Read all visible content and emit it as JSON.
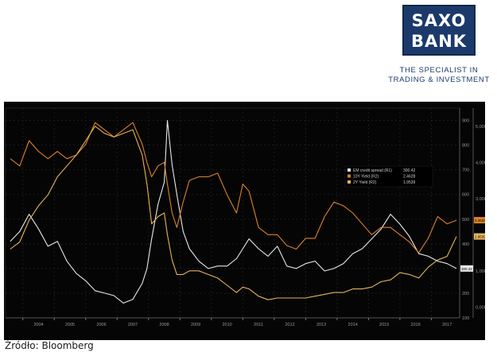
{
  "branding": {
    "logo_line1": "SAXO",
    "logo_line2": "BANK",
    "tagline_line1": "THE SPECIALIST IN",
    "tagline_line2": "TRADING & INVESTMENT",
    "brand_color": "#1b3a6b"
  },
  "source": "Źródło: Bloomberg",
  "chart_data": {
    "type": "line",
    "background": "#050505",
    "grid": true,
    "legend_position": "center-right",
    "x": [
      2003.6,
      2003.9,
      2004.2,
      2004.5,
      2004.8,
      2005.1,
      2005.4,
      2005.7,
      2006.0,
      2006.3,
      2006.6,
      2006.9,
      2007.2,
      2007.5,
      2007.8,
      2007.95,
      2008.1,
      2008.3,
      2008.5,
      2008.6,
      2008.75,
      2008.9,
      2009.1,
      2009.3,
      2009.6,
      2009.9,
      2010.2,
      2010.5,
      2010.8,
      2011.0,
      2011.2,
      2011.5,
      2011.8,
      2012.1,
      2012.4,
      2012.7,
      2013.0,
      2013.3,
      2013.6,
      2013.9,
      2014.2,
      2014.5,
      2014.8,
      2015.1,
      2015.4,
      2015.7,
      2016.0,
      2016.3,
      2016.6,
      2016.9,
      2017.2,
      2017.5,
      2017.8
    ],
    "x_ticks": [
      "2004",
      "2005",
      "2006",
      "2007",
      "2008",
      "2009",
      "2010",
      "2011",
      "2012",
      "2013",
      "2014",
      "2015",
      "2016",
      "2017"
    ],
    "y_left": {
      "label": "",
      "ylim": [
        100,
        950
      ],
      "ticks": [
        "900",
        "800",
        "700",
        "600",
        "500",
        "400",
        "300",
        "200",
        "100"
      ]
    },
    "y_right": {
      "label": "",
      "ylim": [
        -0.3,
        5.5
      ],
      "ticks": [
        "5,0000",
        "4,0000",
        "3,0000",
        "2,0000",
        "1,0000",
        "0,0000"
      ]
    },
    "series": [
      {
        "name": "EM credit spread (R1)",
        "legend_value": "300.42",
        "axis": "left",
        "color": "#e8e8e8",
        "values": [
          410,
          450,
          520,
          460,
          390,
          410,
          330,
          280,
          250,
          210,
          200,
          190,
          160,
          175,
          240,
          300,
          420,
          560,
          650,
          900,
          720,
          600,
          450,
          380,
          330,
          300,
          310,
          310,
          340,
          380,
          420,
          380,
          350,
          390,
          310,
          300,
          320,
          330,
          290,
          300,
          320,
          360,
          380,
          420,
          460,
          520,
          480,
          430,
          360,
          350,
          330,
          320,
          300
        ]
      },
      {
        "name": "10Y Yield (R2)",
        "legend_value": "2.4628",
        "axis": "right",
        "color": "#d9832a",
        "values": [
          4.1,
          3.9,
          4.6,
          4.3,
          4.1,
          4.3,
          4.1,
          4.2,
          4.5,
          5.1,
          4.9,
          4.7,
          4.9,
          5.1,
          4.5,
          4.0,
          3.6,
          3.9,
          4.0,
          3.4,
          2.6,
          2.2,
          2.9,
          3.5,
          3.6,
          3.6,
          3.7,
          3.1,
          2.6,
          3.4,
          3.2,
          2.2,
          2.0,
          2.0,
          1.7,
          1.6,
          1.9,
          1.9,
          2.5,
          2.9,
          2.8,
          2.6,
          2.3,
          2.0,
          2.2,
          2.2,
          2.0,
          1.8,
          1.5,
          1.9,
          2.5,
          2.3,
          2.4
        ]
      },
      {
        "name": "2Y Yield (R2)",
        "legend_value": "1.9539",
        "axis": "right",
        "color": "#e6b45a",
        "values": [
          1.6,
          1.8,
          2.4,
          2.8,
          3.1,
          3.6,
          3.9,
          4.2,
          4.6,
          5.0,
          4.8,
          4.7,
          4.8,
          4.9,
          4.2,
          3.4,
          2.3,
          2.5,
          2.6,
          2.0,
          1.3,
          0.9,
          0.9,
          1.0,
          1.0,
          0.9,
          0.8,
          0.6,
          0.4,
          0.55,
          0.5,
          0.3,
          0.2,
          0.25,
          0.25,
          0.25,
          0.25,
          0.3,
          0.35,
          0.4,
          0.4,
          0.5,
          0.5,
          0.55,
          0.7,
          0.75,
          0.95,
          0.9,
          0.8,
          1.1,
          1.3,
          1.4,
          1.95
        ]
      }
    ]
  }
}
